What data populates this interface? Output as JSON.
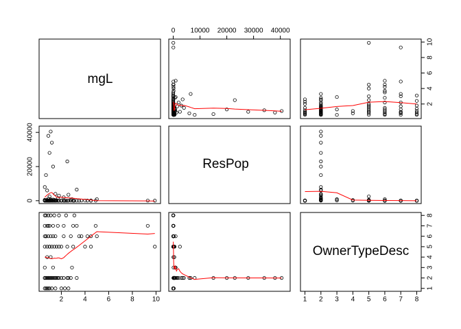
{
  "chart_data": {
    "type": "scatter",
    "variables": [
      {
        "name": "mgL",
        "range": [
          0.5,
          10
        ],
        "ticks": [
          2,
          4,
          6,
          8,
          10
        ],
        "tick_labels": [
          "2",
          "4",
          "6",
          "8",
          "10"
        ]
      },
      {
        "name": "ResPop",
        "range": [
          0,
          42000
        ],
        "ticks": [
          0,
          10000,
          20000,
          30000,
          40000
        ],
        "tick_labels": [
          "0",
          "10000",
          "20000",
          "30000",
          "40000"
        ],
        "left_ticks": [
          0,
          20000,
          40000
        ],
        "left_tick_labels": [
          "0",
          "20000",
          "40000"
        ]
      },
      {
        "name": "OwnerTypeDesc",
        "range": [
          1,
          8
        ],
        "ticks": [
          1,
          2,
          3,
          4,
          5,
          6,
          7,
          8
        ],
        "tick_labels": [
          "1",
          "2",
          "3",
          "4",
          "5",
          "6",
          "7",
          "8"
        ]
      }
    ],
    "smoother": "lowess",
    "point_style": "open-circle",
    "points_color": "#000000",
    "smoother_color": "#ff0000",
    "observations": [
      [
        0.6,
        40,
        2
      ],
      [
        0.7,
        150,
        2
      ],
      [
        0.8,
        500,
        5
      ],
      [
        0.9,
        1200,
        2
      ],
      [
        1.0,
        2500,
        5
      ],
      [
        0.6,
        8000,
        2
      ],
      [
        0.7,
        15000,
        2
      ],
      [
        0.9,
        38000,
        2
      ],
      [
        1.1,
        40500,
        2
      ],
      [
        1.2,
        34000,
        2
      ],
      [
        1.0,
        28000,
        2
      ],
      [
        1.3,
        20000,
        2
      ],
      [
        2.5,
        23000,
        2
      ],
      [
        0.8,
        6000,
        2
      ],
      [
        1.5,
        4000,
        2
      ],
      [
        1.8,
        3000,
        2
      ],
      [
        2.2,
        2000,
        2
      ],
      [
        3.3,
        6500,
        2
      ],
      [
        2.6,
        3500,
        2
      ],
      [
        1.1,
        800,
        2
      ],
      [
        1.4,
        500,
        2
      ],
      [
        1.6,
        300,
        2
      ],
      [
        0.6,
        200,
        1
      ],
      [
        0.7,
        100,
        1
      ],
      [
        0.8,
        50,
        1
      ],
      [
        0.9,
        30,
        1
      ],
      [
        1.0,
        20,
        1
      ],
      [
        1.2,
        10,
        1
      ],
      [
        1.5,
        5,
        1
      ],
      [
        2.0,
        3,
        1
      ],
      [
        2.3,
        2,
        1
      ],
      [
        2.6,
        1,
        1
      ],
      [
        0.6,
        100,
        3
      ],
      [
        0.8,
        60,
        4
      ],
      [
        1.0,
        30,
        5
      ],
      [
        1.2,
        20,
        5
      ],
      [
        1.4,
        10,
        5
      ],
      [
        1.6,
        5,
        5
      ],
      [
        1.8,
        3,
        5
      ],
      [
        2.0,
        2,
        5
      ],
      [
        2.5,
        1,
        5
      ],
      [
        3.0,
        1,
        5
      ],
      [
        0.6,
        80,
        6
      ],
      [
        0.7,
        60,
        6
      ],
      [
        0.9,
        40,
        6
      ],
      [
        1.1,
        30,
        6
      ],
      [
        1.3,
        20,
        6
      ],
      [
        1.5,
        10,
        6
      ],
      [
        2.2,
        8,
        6
      ],
      [
        2.8,
        6,
        6
      ],
      [
        3.5,
        4,
        6
      ],
      [
        4.5,
        2,
        6
      ],
      [
        0.6,
        50,
        7
      ],
      [
        0.8,
        30,
        7
      ],
      [
        1.0,
        20,
        7
      ],
      [
        1.3,
        10,
        7
      ],
      [
        1.7,
        6,
        7
      ],
      [
        2.2,
        4,
        7
      ],
      [
        3.0,
        2,
        7
      ],
      [
        3.3,
        1,
        7
      ],
      [
        0.6,
        40,
        8
      ],
      [
        0.7,
        30,
        8
      ],
      [
        0.9,
        20,
        8
      ],
      [
        1.1,
        10,
        8
      ],
      [
        1.4,
        5,
        8
      ],
      [
        1.8,
        3,
        8
      ],
      [
        2.4,
        2,
        8
      ],
      [
        3.1,
        1,
        8
      ],
      [
        0.6,
        500,
        2
      ],
      [
        0.8,
        350,
        2
      ],
      [
        1.0,
        300,
        2
      ],
      [
        1.2,
        250,
        2
      ],
      [
        1.5,
        200,
        2
      ],
      [
        2.8,
        600,
        2
      ],
      [
        2.0,
        150,
        2
      ],
      [
        4.0,
        100,
        5
      ],
      [
        4.5,
        120,
        5
      ],
      [
        5.0,
        900,
        6
      ],
      [
        4.9,
        60,
        7
      ],
      [
        9.3,
        50,
        7
      ],
      [
        9.9,
        30,
        5
      ],
      [
        4.2,
        80,
        6
      ],
      [
        3.7,
        120,
        6
      ],
      [
        2.9,
        900,
        3
      ],
      [
        0.6,
        300,
        5
      ],
      [
        0.7,
        200,
        6
      ],
      [
        0.9,
        100,
        7
      ],
      [
        1.1,
        400,
        4
      ],
      [
        1.3,
        700,
        3
      ],
      [
        1.7,
        1500,
        2
      ]
    ]
  }
}
